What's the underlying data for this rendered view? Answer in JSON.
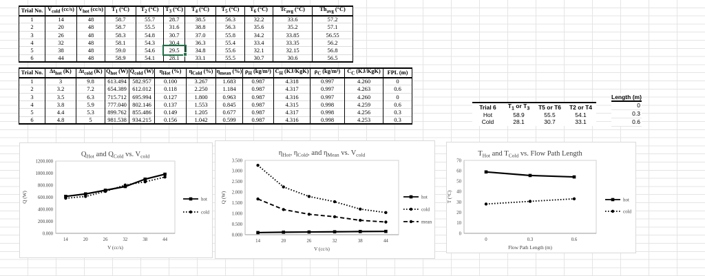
{
  "sheet": {
    "grid_color": "#e4e4e4",
    "selection_color": "#1e7145",
    "selection": {
      "table": "temperature-table",
      "row_index": 4,
      "col_index": 5,
      "value": "29.5"
    }
  },
  "table1": {
    "headers": [
      "Trial No.",
      "V_{cold} (cc/s)",
      "V_{hot} (cc/s)",
      "T_{1} (°C)",
      "T_{2} (°C)",
      "T_{3} (°C)",
      "T_{4} (°C)",
      "T_{5} (°C)",
      "T_{6} (°C)",
      "Tc_{avg} (°C)",
      "Th_{avg} (°C)"
    ],
    "rows": [
      [
        "1",
        "14",
        "48",
        "58.7",
        "55.7",
        "28.7",
        "38.5",
        "56.3",
        "32.2",
        "33.6",
        "57.2"
      ],
      [
        "2",
        "20",
        "48",
        "58.7",
        "55.5",
        "31.6",
        "38.8",
        "56.3",
        "35.6",
        "35.2",
        "57.1"
      ],
      [
        "3",
        "26",
        "48",
        "58.3",
        "54.8",
        "30.7",
        "37.0",
        "55.8",
        "34.2",
        "33.85",
        "56.55"
      ],
      [
        "4",
        "32",
        "48",
        "58.1",
        "54.3",
        "30.4",
        "36.3",
        "55.4",
        "33.4",
        "33.35",
        "56.2"
      ],
      [
        "5",
        "38",
        "48",
        "59.0",
        "54.6",
        "29.5",
        "34.8",
        "55.6",
        "32.1",
        "32.15",
        "56.8"
      ],
      [
        "6",
        "44",
        "48",
        "58.9",
        "54.1",
        "28.1",
        "33.1",
        "55.5",
        "30.7",
        "30.6",
        "56.5"
      ]
    ]
  },
  "table2": {
    "headers": [
      "Trial No.",
      "Δt_{hot} (K)",
      "Δt_{cold} (K)",
      "Q_{hot} (W)",
      "Q_{cold} (W)",
      "η_{Hot} (%)",
      "η_{Cold} (%)",
      "η_{mean} (%)",
      "ρ_{H} (kg/m³)",
      "C_{H} (KJ/KgK)",
      "ρ_{C} (kg/m³)",
      "C_{C} (KJ/KgK)",
      "FPL (m)"
    ],
    "rows": [
      [
        "1",
        "3",
        "9.8",
        "613.494",
        "582.957",
        "0.100",
        "3.267",
        "1.683",
        "0.987",
        "4.318",
        "0.997",
        "4.260",
        "0"
      ],
      [
        "2",
        "3.2",
        "7.2",
        "654.389",
        "612.012",
        "0.118",
        "2.250",
        "1.184",
        "0.987",
        "4.317",
        "0.997",
        "4.263",
        "0.6"
      ],
      [
        "3",
        "3.5",
        "6.3",
        "715.712",
        "695.994",
        "0.127",
        "1.800",
        "0.963",
        "0.987",
        "4.316",
        "0.997",
        "4.260",
        "0"
      ],
      [
        "4",
        "3.8",
        "5.9",
        "777.040",
        "802.146",
        "0.137",
        "1.553",
        "0.845",
        "0.987",
        "4.315",
        "0.998",
        "4.259",
        "0.6"
      ],
      [
        "5",
        "4.4",
        "5.3",
        "899.762",
        "855.486",
        "0.149",
        "1.205",
        "0.677",
        "0.987",
        "4.317",
        "0.998",
        "4.256",
        "0.3"
      ],
      [
        "6",
        "4.8",
        "5",
        "981.538",
        "934.215",
        "0.156",
        "1.042",
        "0.599",
        "0.987",
        "4.316",
        "0.998",
        "4.253",
        "0.3"
      ]
    ]
  },
  "mini_table": {
    "headers": [
      "Trial 6",
      "T_{1} or T_{3}",
      "T5 or T6",
      "T2 or T4"
    ],
    "rows": [
      [
        "Hot",
        "58.9",
        "55.5",
        "54.1"
      ],
      [
        "Cold",
        "28.1",
        "30.7",
        "33.1"
      ]
    ]
  },
  "length_col": {
    "header": "Length (m)",
    "values": [
      "0",
      "0.3",
      "0.6"
    ]
  },
  "chart_data": [
    {
      "type": "line",
      "title": "Q_{Hot} and Q_{Cold} vs. V_{cold}",
      "xlabel": "V (cc/s)",
      "ylabel": "Q (W)",
      "categories": [
        "14",
        "20",
        "26",
        "32",
        "38",
        "44"
      ],
      "ylim": [
        0,
        1200
      ],
      "ytick_step": 200,
      "ytick_decimals": 3,
      "grid": false,
      "legend_position": "right",
      "series": [
        {
          "name": "hot",
          "style": "solid-square",
          "values": [
            613.494,
            654.389,
            715.712,
            777.04,
            899.762,
            981.538
          ]
        },
        {
          "name": "cold",
          "style": "dotted-circle",
          "values": [
            582.957,
            612.012,
            695.994,
            802.146,
            855.486,
            934.215
          ]
        }
      ]
    },
    {
      "type": "line",
      "title": "η_{Hot}, η_{Cold}, and η_{Mean} vs. V_{cold}",
      "xlabel": "V (cc/s)",
      "ylabel": "Q (W)",
      "categories": [
        "14",
        "20",
        "26",
        "32",
        "38",
        "44"
      ],
      "ylim": [
        0,
        3.5
      ],
      "ytick_step": 0.5,
      "ytick_decimals": 3,
      "grid": false,
      "legend_position": "right",
      "series": [
        {
          "name": "hot",
          "style": "solid-square",
          "values": [
            0.1,
            0.118,
            0.127,
            0.137,
            0.149,
            0.156
          ]
        },
        {
          "name": "cold",
          "style": "dotted-circle",
          "values": [
            3.267,
            2.25,
            1.8,
            1.553,
            1.205,
            1.042
          ]
        },
        {
          "name": "mean",
          "style": "dashed-circle",
          "values": [
            1.683,
            1.184,
            0.963,
            0.845,
            0.677,
            0.599
          ]
        }
      ]
    },
    {
      "type": "line",
      "title": "T_{Hot} and T_{Cold} vs. Flow Path Length",
      "xlabel": "Flow Path Length (m)",
      "ylabel": "T (°C)",
      "categories": [
        "0",
        "0.3",
        "0.6"
      ],
      "ylim": [
        0,
        70
      ],
      "ytick_step": 10,
      "ytick_decimals": 0,
      "grid": false,
      "legend_position": "right",
      "series": [
        {
          "name": "hot",
          "style": "solid-square",
          "values": [
            58.9,
            55.5,
            54.1
          ]
        },
        {
          "name": "cold",
          "style": "dotted-circle",
          "values": [
            28.1,
            30.7,
            33.1
          ]
        }
      ]
    }
  ]
}
